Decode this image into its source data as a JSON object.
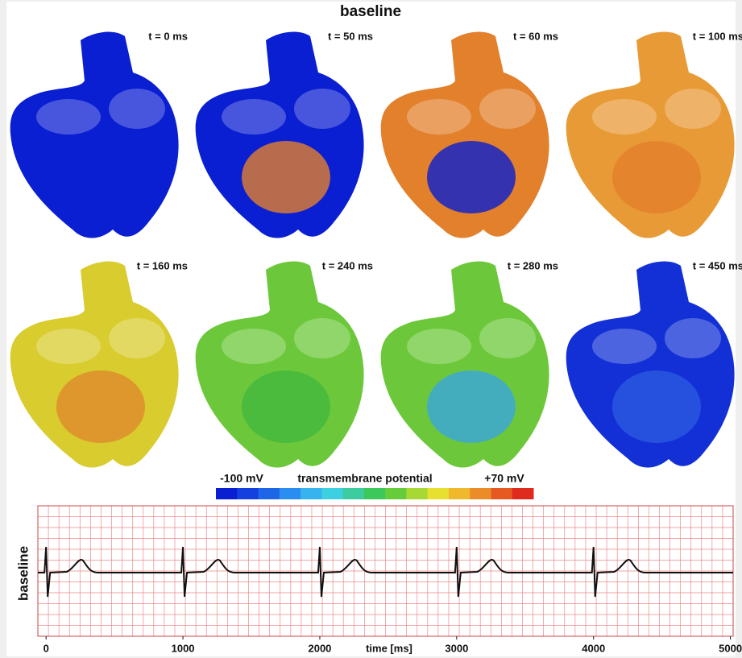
{
  "title": "baseline",
  "panels": [
    {
      "label": "t = 0 ms",
      "color": "#0a1ed2",
      "accent": "#0a1ed2"
    },
    {
      "label": "t = 50 ms",
      "color": "#0a1ed2",
      "accent": "#e2802c"
    },
    {
      "label": "t = 60 ms",
      "color": "#e2802c",
      "accent": "#0a1ed2"
    },
    {
      "label": "t = 100 ms",
      "color": "#e89a36",
      "accent": "#e2802c"
    },
    {
      "label": "t = 160 ms",
      "color": "#d8cc2e",
      "accent": "#e08a2c"
    },
    {
      "label": "t = 240 ms",
      "color": "#6cc83a",
      "accent": "#44b83e"
    },
    {
      "label": "t = 280 ms",
      "color": "#6cc83a",
      "accent": "#3aa6e0"
    },
    {
      "label": "t = 450 ms",
      "color": "#1230d6",
      "accent": "#2a5ae0"
    }
  ],
  "colorbar": {
    "min_label": "-100 mV",
    "title": "transmembrane potential",
    "max_label": "+70 mV",
    "colors": [
      "#0a1ed2",
      "#1440e0",
      "#1e66e8",
      "#2a8ef0",
      "#36b4f0",
      "#3cd0e0",
      "#3ccca0",
      "#3cc85a",
      "#66cc3a",
      "#a8d834",
      "#e8e030",
      "#f0b82c",
      "#ec8c28",
      "#e65a22",
      "#e02a1e"
    ]
  },
  "ecg": {
    "ylabel": "baseline",
    "xlabel": "time [ms]",
    "xlim": [
      -60,
      5020
    ],
    "xticks": [
      0,
      1000,
      2000,
      3000,
      4000,
      5000
    ],
    "beats": [
      0,
      1000,
      2000,
      3000,
      4000
    ]
  }
}
